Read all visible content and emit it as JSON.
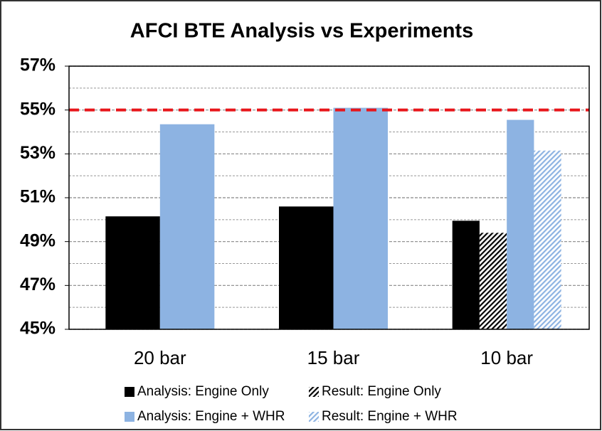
{
  "chart_data": {
    "type": "bar",
    "title": "AFCI BTE Analysis vs Experiments",
    "categories": [
      "20 bar",
      "15 bar",
      "10 bar"
    ],
    "series": [
      {
        "name": "Analysis: Engine Only",
        "color": "#000000",
        "values": [
          50.15,
          50.6,
          49.95
        ]
      },
      {
        "name": "Result: Engine Only",
        "color": "#000000",
        "pattern": "hatch",
        "values": [
          null,
          null,
          49.4
        ]
      },
      {
        "name": "Analysis: Engine + WHR",
        "color": "#8db3e2",
        "values": [
          54.35,
          55.1,
          54.55
        ]
      },
      {
        "name": "Result: Engine + WHR",
        "color": "#8db3e2",
        "pattern": "hatch",
        "values": [
          null,
          null,
          53.15
        ]
      }
    ],
    "ylim": [
      45,
      57
    ],
    "yticks": [
      {
        "value": 45,
        "label": "45%"
      },
      {
        "value": 47,
        "label": "47%"
      },
      {
        "value": 49,
        "label": "49%"
      },
      {
        "value": 51,
        "label": "51%"
      },
      {
        "value": 53,
        "label": "53%"
      },
      {
        "value": 55,
        "label": "55%"
      },
      {
        "value": 57,
        "label": "57%"
      }
    ],
    "minor_yticks": [
      46,
      48,
      50,
      52,
      54,
      56
    ],
    "grid": true,
    "reference_line": {
      "value": 55,
      "color": "#e8161b"
    },
    "legend": "bottom"
  }
}
